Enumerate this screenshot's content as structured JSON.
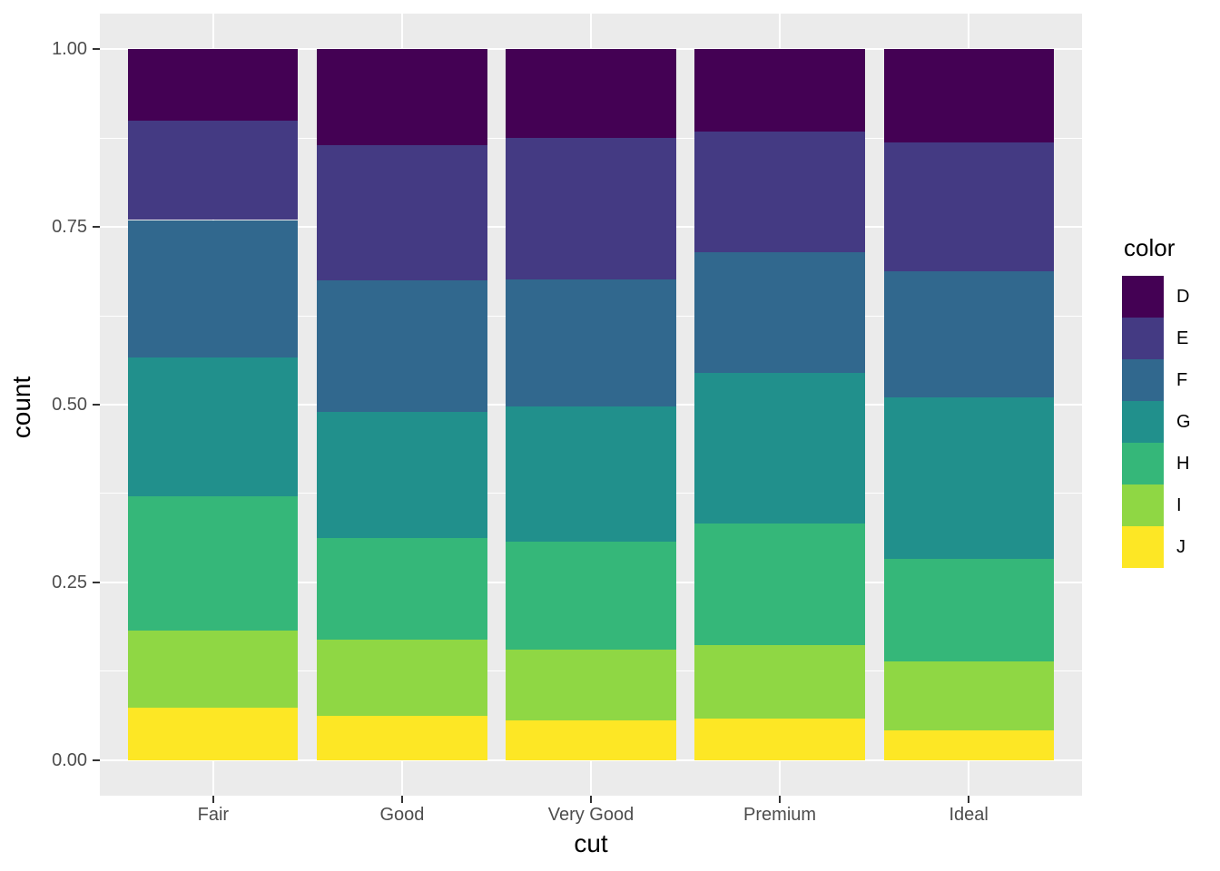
{
  "chart_data": {
    "type": "bar",
    "subtype": "stacked-normalized",
    "title": "",
    "xlabel": "cut",
    "ylabel": "count",
    "categories": [
      "Fair",
      "Good",
      "Very Good",
      "Premium",
      "Ideal"
    ],
    "series": [
      {
        "name": "D",
        "color": "#440154",
        "values": [
          0.1012,
          0.1349,
          0.1252,
          0.1162,
          0.1315
        ]
      },
      {
        "name": "E",
        "color": "#443A83",
        "values": [
          0.1391,
          0.1902,
          0.1986,
          0.1695,
          0.1811
        ]
      },
      {
        "name": "F",
        "color": "#31688E",
        "values": [
          0.1938,
          0.1853,
          0.1791,
          0.169,
          0.1775
        ]
      },
      {
        "name": "G",
        "color": "#21908C",
        "values": [
          0.195,
          0.1775,
          0.1903,
          0.212,
          0.2266
        ]
      },
      {
        "name": "H",
        "color": "#35B779",
        "values": [
          0.1882,
          0.1431,
          0.151,
          0.1711,
          0.1445
        ]
      },
      {
        "name": "I",
        "color": "#8FD744",
        "values": [
          0.1087,
          0.1064,
          0.0997,
          0.1035,
          0.0971
        ]
      },
      {
        "name": "J",
        "color": "#FDE725",
        "values": [
          0.0739,
          0.0626,
          0.0561,
          0.0586,
          0.0416
        ]
      }
    ],
    "stack_order_bottom_to_top": [
      "J",
      "I",
      "H",
      "G",
      "F",
      "E",
      "D"
    ],
    "legend_title": "color",
    "legend_position": "right",
    "ylim": [
      0,
      1
    ],
    "y_major_ticks": [
      {
        "label": "0.00",
        "value": 0.0
      },
      {
        "label": "0.25",
        "value": 0.25
      },
      {
        "label": "0.50",
        "value": 0.5
      },
      {
        "label": "0.75",
        "value": 0.75
      },
      {
        "label": "1.00",
        "value": 1.0
      }
    ],
    "y_minor_ticks": [
      0.125,
      0.375,
      0.625,
      0.875
    ],
    "grid": "white major+minor horizontal and major vertical gridlines on grey panel",
    "panel_background": "#EBEBEB",
    "gridline_color": "#ffffff",
    "tick_label_color": "#4D4D4D",
    "axis_title_color": "#000000"
  }
}
